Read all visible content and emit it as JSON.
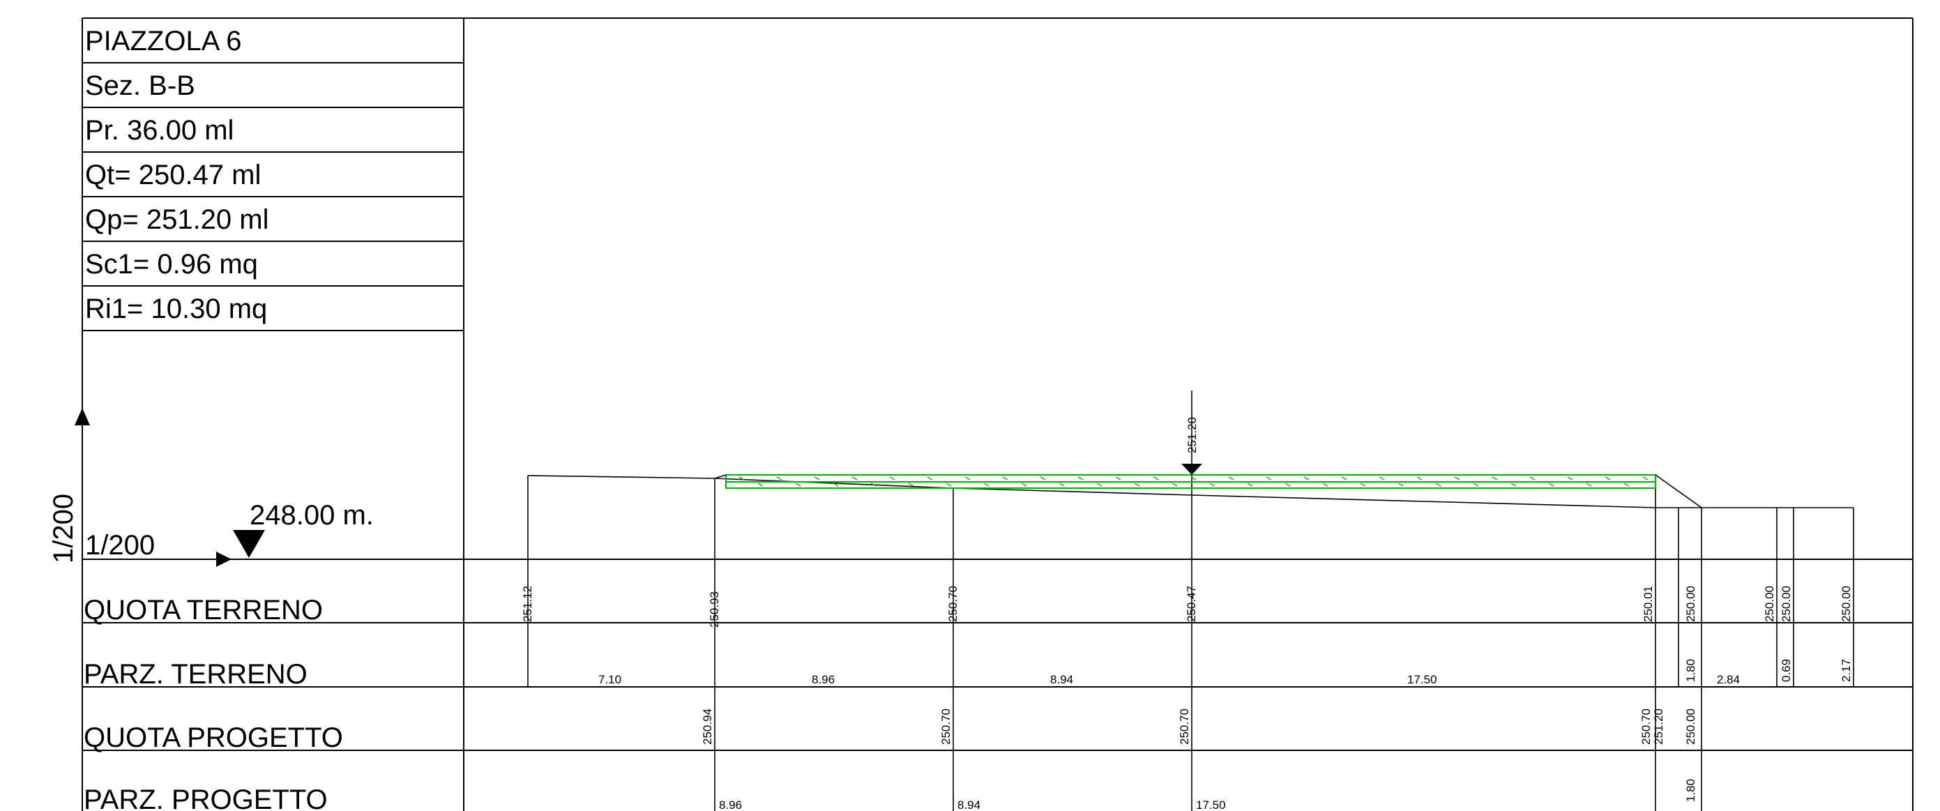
{
  "info": {
    "title": "PIAZZOLA 6",
    "section": "Sez. B-B",
    "progressive": "Pr. 36.00 ml",
    "terrain_level": "Qt= 250.47 ml",
    "project_level": "Qp= 251.20 ml",
    "cut_area": "Sc1= 0.96 mq",
    "fill_area": "Ri1= 10.30 mq"
  },
  "scale": {
    "vertical": "1/200",
    "horizontal": "1/200",
    "datum": "248.00 m."
  },
  "rows": {
    "quota_terreno": "QUOTA TERRENO",
    "parz_terreno": "PARZ. TERRENO",
    "quota_progetto": "QUOTA PROGETTO",
    "parz_progetto": "PARZ. PROGETTO"
  },
  "project_marker": "251.20",
  "quota_terreno": [
    "251.12",
    "250.93",
    "250.70",
    "250.47",
    "250.01",
    "250.00",
    "250.00",
    "250.00",
    "250.00"
  ],
  "parz_terreno": [
    "7.10",
    "8.96",
    "8.94",
    "17.50",
    "1.80",
    "2.84",
    "0.69",
    "2.17"
  ],
  "quota_progetto": [
    "250.94",
    "250.70",
    "250.70",
    "250.70",
    "251.20",
    "250.00"
  ],
  "parz_progetto": [
    "8.96",
    "8.94",
    "17.50",
    "1.80"
  ],
  "colors": {
    "lines": "#000000",
    "project_section": "#1aa81a",
    "background": "#ffffff"
  }
}
